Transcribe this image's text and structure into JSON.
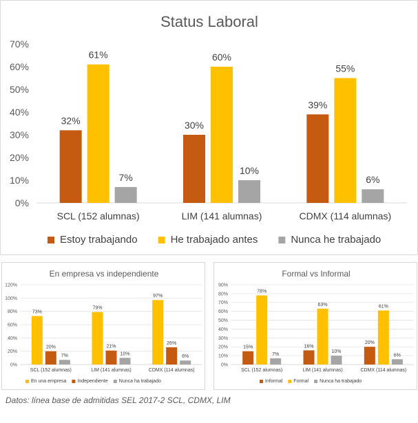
{
  "chart_data": [
    {
      "type": "bar",
      "title": "Status Laboral",
      "categories": [
        "SCL (152 alumnas)",
        "LIM (141 alumnas)",
        "CDMX (114 alumnas)"
      ],
      "series": [
        {
          "name": "Estoy trabajando",
          "values": [
            32,
            30,
            39
          ],
          "color": "#c55a11"
        },
        {
          "name": "He trabajado antes",
          "values": [
            61,
            60,
            55
          ],
          "color": "#ffc000"
        },
        {
          "name": "Nunca he trabajado",
          "values": [
            7,
            10,
            6
          ],
          "color": "#a5a5a5"
        }
      ],
      "ylim": [
        0,
        70
      ],
      "ystep": 10,
      "yformat": "percent",
      "grid": false,
      "legend": "bottom"
    },
    {
      "type": "bar",
      "title": "En empresa vs independiente",
      "categories": [
        "SCL (152 alumnas)",
        "LIM (141 alumnas)",
        "CDMX (114 alumnas)"
      ],
      "series": [
        {
          "name": "En una empresa",
          "values": [
            73,
            79,
            97
          ],
          "color": "#ffc000"
        },
        {
          "name": "Independiente",
          "values": [
            20,
            21,
            26
          ],
          "color": "#c55a11"
        },
        {
          "name": "Nunca ha trabajado",
          "values": [
            7,
            10,
            6
          ],
          "color": "#a5a5a5"
        }
      ],
      "ylim": [
        0,
        120
      ],
      "ystep": 20,
      "yformat": "percent",
      "grid": true,
      "legend": "bottom"
    },
    {
      "type": "bar",
      "title": "Formal vs Informal",
      "categories": [
        "SCL (152 alumnas)",
        "LIM (141 alumnas)",
        "CDMX (114 alumnas)"
      ],
      "series": [
        {
          "name": "Informal",
          "values": [
            15,
            16,
            20
          ],
          "color": "#c55a11"
        },
        {
          "name": "Formal",
          "values": [
            78,
            63,
            61
          ],
          "color": "#ffc000"
        },
        {
          "name": "Nunca ha trabajado",
          "values": [
            7,
            10,
            6
          ],
          "color": "#a5a5a5"
        }
      ],
      "ylim": [
        0,
        90
      ],
      "ystep": 10,
      "yformat": "percent",
      "grid": true,
      "legend": "bottom"
    }
  ],
  "footer": "Datos: línea base de admitidas SEL 2017-2 SCL, CDMX, LIM"
}
